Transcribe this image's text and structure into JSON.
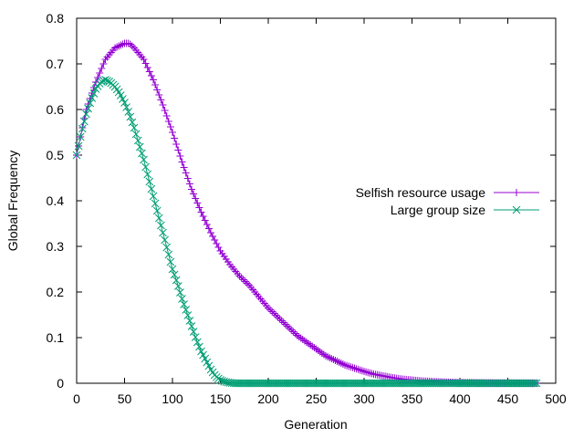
{
  "chart_data": {
    "type": "line",
    "title": "",
    "xlabel": "Generation",
    "ylabel": "Global Frequency",
    "xlim": [
      0,
      500
    ],
    "ylim": [
      0,
      0.8
    ],
    "xticks": [
      "0",
      "50",
      "100",
      "150",
      "200",
      "250",
      "300",
      "350",
      "400",
      "450",
      "500"
    ],
    "yticks": [
      "0",
      "0.1",
      "0.2",
      "0.3",
      "0.4",
      "0.5",
      "0.6",
      "0.7",
      "0.8"
    ],
    "grid": false,
    "legend_position": "right",
    "series": [
      {
        "name": "Selfish resource usage",
        "color": "#9400d3",
        "marker": "plus",
        "x": [
          0,
          10,
          20,
          30,
          40,
          50,
          55,
          60,
          70,
          80,
          90,
          100,
          110,
          120,
          130,
          140,
          150,
          160,
          170,
          180,
          190,
          200,
          210,
          220,
          230,
          240,
          250,
          260,
          270,
          280,
          290,
          300,
          310,
          320,
          330,
          340,
          350,
          360,
          370,
          380,
          390,
          400,
          420,
          440,
          460,
          480
        ],
        "y": [
          0.5,
          0.6,
          0.66,
          0.71,
          0.735,
          0.745,
          0.745,
          0.735,
          0.71,
          0.665,
          0.61,
          0.55,
          0.485,
          0.425,
          0.375,
          0.33,
          0.29,
          0.26,
          0.235,
          0.215,
          0.19,
          0.165,
          0.145,
          0.125,
          0.105,
          0.09,
          0.075,
          0.06,
          0.05,
          0.04,
          0.033,
          0.026,
          0.02,
          0.016,
          0.012,
          0.009,
          0.007,
          0.005,
          0.004,
          0.003,
          0.002,
          0.0015,
          0.001,
          0.0005,
          0.0003,
          0.0002
        ]
      },
      {
        "name": "Large group size",
        "color": "#009e73",
        "marker": "cross",
        "x": [
          0,
          5,
          10,
          15,
          20,
          25,
          30,
          35,
          40,
          45,
          50,
          55,
          60,
          65,
          70,
          75,
          80,
          85,
          90,
          95,
          100,
          105,
          110,
          115,
          120,
          125,
          130,
          135,
          140,
          145,
          150,
          155,
          160,
          165,
          170,
          200,
          250,
          300,
          350,
          400,
          450,
          480
        ],
        "y": [
          0.5,
          0.55,
          0.59,
          0.62,
          0.645,
          0.66,
          0.665,
          0.66,
          0.65,
          0.635,
          0.615,
          0.59,
          0.56,
          0.525,
          0.49,
          0.45,
          0.41,
          0.37,
          0.33,
          0.29,
          0.25,
          0.22,
          0.185,
          0.155,
          0.125,
          0.095,
          0.07,
          0.05,
          0.03,
          0.015,
          0.007,
          0.003,
          0.001,
          0.0,
          0.0,
          0.0,
          0.0,
          0.0,
          0.0,
          0.0,
          0.0,
          0.0
        ]
      }
    ]
  }
}
